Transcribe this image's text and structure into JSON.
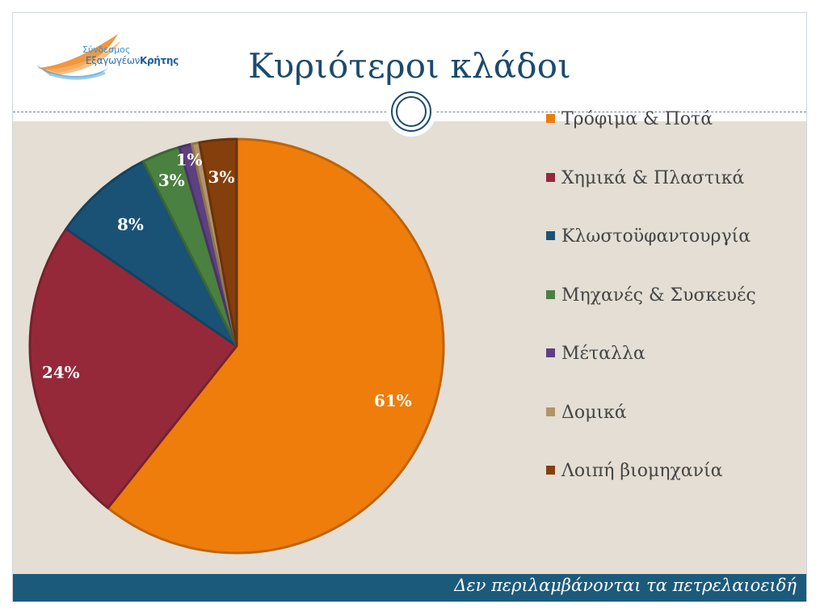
{
  "header": {
    "title": "Κυριότεροι κλάδοι",
    "logo_line1": "Σύνδεσμος",
    "logo_line2_a": "Εξαγωγέων",
    "logo_line2_b": "Κρήτης"
  },
  "footer": {
    "note": "Δεν περιλαμβάνονται τα πετρελαιοειδή"
  },
  "chart_data": {
    "type": "pie",
    "title": "",
    "legend_position": "right",
    "categories": [
      "Τρόφιμα & Ποτά",
      "Χημικά & Πλαστικά",
      "Κλωστοϋφαντουργία",
      "Μηχανές & Συσκευές",
      "Μέταλλα",
      "Δομικά",
      "Λοιπή βιομηχανία"
    ],
    "values": [
      61,
      24,
      8,
      3,
      1,
      0.6,
      2.9
    ],
    "data_labels": [
      "61%",
      "24%",
      "8%",
      "3%",
      "1%",
      "",
      "3%"
    ],
    "colors": [
      "#ee7d0b",
      "#95293a",
      "#1a5276",
      "#4a8040",
      "#5d4080",
      "#b39466",
      "#843f0c"
    ]
  }
}
